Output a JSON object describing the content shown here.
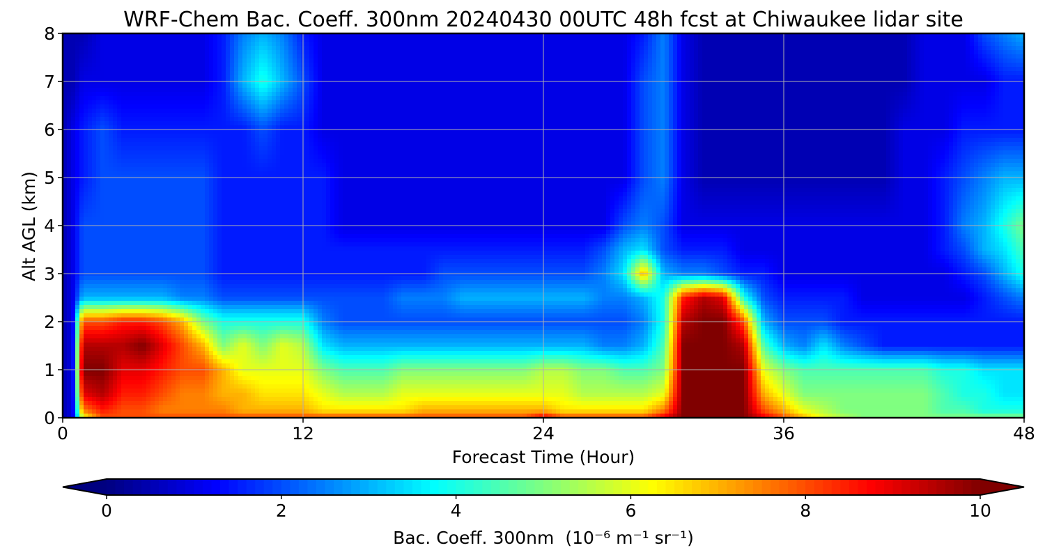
{
  "chart_data": {
    "type": "heatmap",
    "title": "WRF-Chem Bac. Coeff. 300nm  20240430 00UTC 48h fcst at Chiwaukee lidar site",
    "xlabel": "Forecast Time (Hour)",
    "ylabel": "Alt AGL (km)",
    "xlim": [
      0,
      48
    ],
    "ylim": [
      0,
      8
    ],
    "x_ticks": [
      "0",
      "12",
      "24",
      "36",
      "48"
    ],
    "y_ticks": [
      "0",
      "1",
      "2",
      "3",
      "4",
      "5",
      "6",
      "7",
      "8"
    ],
    "grid": true,
    "colormap": "jet",
    "colorbar": {
      "label": "Bac. Coeff. 300nm",
      "units": "(10⁻⁶ m⁻¹ sr⁻¹)",
      "range": [
        0,
        10
      ],
      "ticks": [
        "0",
        "2",
        "4",
        "6",
        "8",
        "10"
      ],
      "extend": "both",
      "orientation": "horizontal"
    },
    "x": [
      0,
      0.5,
      1,
      2,
      3,
      4,
      5,
      6,
      7,
      8,
      9,
      10,
      11,
      12,
      13,
      14,
      15,
      16,
      17,
      18,
      19,
      20,
      21,
      22,
      23,
      24,
      25,
      26,
      27,
      28,
      29,
      30,
      31,
      32,
      33,
      34,
      35,
      36,
      37,
      38,
      39,
      40,
      41,
      42,
      43,
      44,
      45,
      46,
      47,
      48
    ],
    "y": [
      0,
      0.15,
      0.5,
      1,
      1.5,
      2,
      2.5,
      3,
      3.5,
      4,
      5,
      6,
      7,
      8
    ],
    "z_by_altitude": [
      [
        0.5,
        1,
        6,
        8,
        8,
        8,
        8,
        8,
        8,
        8,
        8,
        8,
        8,
        8,
        8,
        8,
        8,
        8,
        8,
        8,
        8,
        8,
        8,
        8,
        8,
        9,
        8,
        8,
        8,
        8,
        8,
        9,
        10,
        10,
        10,
        10,
        9,
        8,
        7,
        6,
        5.5,
        5,
        5,
        5,
        5,
        5,
        5,
        5,
        5,
        5
      ],
      [
        0.5,
        1,
        7.5,
        8.5,
        8,
        8,
        7.5,
        7.5,
        7.5,
        7.5,
        7,
        7,
        7,
        7,
        6.5,
        6.5,
        6.5,
        6.5,
        6.5,
        7,
        7,
        7,
        7,
        7,
        7,
        7,
        6.5,
        6.5,
        6.5,
        6.5,
        6.5,
        7.5,
        10,
        10,
        10,
        10,
        8,
        7,
        6,
        5.5,
        5,
        5,
        5,
        5,
        5,
        4.5,
        4.5,
        4,
        4,
        4
      ],
      [
        0.5,
        1,
        9,
        9.5,
        8.5,
        8.5,
        8,
        7.5,
        7.5,
        7,
        7,
        6.5,
        6.5,
        6.5,
        6,
        5.5,
        5.5,
        5.5,
        6,
        6,
        6,
        6,
        6,
        6,
        6,
        6,
        6,
        5.5,
        5.5,
        5.5,
        5.5,
        6,
        10,
        10,
        10,
        10,
        7,
        6,
        5,
        5,
        5,
        5,
        5,
        5,
        5,
        4.5,
        4,
        4,
        3.5,
        3.5
      ],
      [
        0.5,
        1,
        10,
        10,
        9,
        9,
        8.5,
        8,
        8,
        7,
        6,
        6,
        6,
        6,
        5,
        4.5,
        4.5,
        4.5,
        5,
        5,
        5,
        5,
        5,
        5,
        5,
        5.5,
        5.5,
        5,
        5,
        4.5,
        4.5,
        5,
        10,
        10,
        10,
        10,
        6,
        5,
        4.5,
        4.5,
        4.5,
        4.5,
        4.5,
        4.5,
        4.5,
        4,
        4,
        3.5,
        3.5,
        3.5
      ],
      [
        0.5,
        1,
        9.5,
        9.5,
        9.5,
        10,
        9,
        8,
        7,
        5,
        6,
        5,
        6,
        5.5,
        3.5,
        3,
        3,
        3,
        3,
        3,
        3,
        3,
        3,
        3,
        3,
        3,
        3,
        3,
        2.5,
        2.5,
        3,
        4.5,
        10,
        10,
        10,
        9.5,
        4.5,
        3,
        2.5,
        3.5,
        2.5,
        2,
        1.5,
        1.5,
        1.5,
        1.5,
        1.5,
        1.5,
        1.5,
        1.5
      ],
      [
        0.5,
        1,
        8,
        8,
        8.5,
        8.5,
        8,
        7,
        5,
        4,
        4,
        4,
        4,
        4,
        2.5,
        2,
        2,
        2,
        2,
        2,
        2,
        2,
        2,
        2,
        2,
        2,
        2,
        2,
        2,
        2,
        2.5,
        4,
        9.5,
        10,
        10,
        8,
        3,
        2,
        2,
        2,
        1.5,
        1.5,
        1.5,
        1.5,
        1.5,
        1.5,
        1.5,
        1.5,
        1.5,
        1.5
      ],
      [
        0.5,
        1,
        3,
        3,
        3,
        3,
        3,
        2.5,
        2.5,
        2,
        2,
        2,
        2,
        2,
        2,
        2,
        2,
        2,
        2.5,
        2.5,
        2.5,
        3,
        3,
        3,
        3,
        3,
        3,
        3,
        2.5,
        2.5,
        3,
        4,
        8.5,
        9.5,
        9,
        4,
        2,
        1.5,
        1.5,
        1.5,
        1.5,
        1,
        1,
        1,
        1,
        1,
        1,
        1.5,
        2,
        2.5
      ],
      [
        0.5,
        1,
        2,
        2,
        2,
        2,
        2,
        2,
        2,
        1.5,
        1.5,
        1.5,
        1.5,
        1.5,
        1.5,
        1.5,
        1.5,
        1.5,
        1.5,
        1.5,
        2,
        2,
        2,
        2,
        2,
        2,
        2,
        2,
        2.5,
        3.5,
        7,
        3,
        2.5,
        2.5,
        2,
        1.5,
        1.5,
        1,
        1,
        1,
        1,
        1,
        1,
        1,
        1,
        1,
        1.5,
        2,
        3,
        4
      ],
      [
        0.5,
        1,
        2,
        2,
        2,
        2,
        2,
        2,
        2,
        1.5,
        1.5,
        1.5,
        1.5,
        1.5,
        1.5,
        1.5,
        1.5,
        1.5,
        1.5,
        1.5,
        1.5,
        1.5,
        1.5,
        1.5,
        1.5,
        1.5,
        1.5,
        1.5,
        2,
        3,
        3.5,
        2,
        1.5,
        1.5,
        1.5,
        1,
        1,
        1,
        1,
        1,
        1,
        1,
        1,
        1,
        1,
        1.5,
        2,
        3,
        3.5,
        4.5
      ],
      [
        0.5,
        1,
        2,
        2,
        2,
        2,
        2,
        2,
        2,
        1.5,
        1.5,
        1.5,
        1.5,
        1.5,
        1.5,
        1,
        1,
        1,
        1,
        1,
        1,
        1,
        1,
        1,
        1,
        1,
        1,
        1,
        1,
        2,
        2.5,
        2,
        1,
        1,
        1,
        1,
        1,
        1,
        1,
        1,
        1,
        1,
        1,
        1,
        1,
        1.5,
        2.5,
        3,
        4,
        5
      ],
      [
        0.5,
        1,
        1.5,
        2,
        2,
        2,
        2,
        2,
        2,
        1.5,
        1.5,
        1.5,
        1.5,
        1.5,
        1.5,
        1,
        1,
        1,
        1,
        1,
        1,
        1,
        1,
        1,
        1,
        1,
        1,
        1,
        1,
        1,
        2,
        2.5,
        1,
        0.5,
        0.5,
        0.5,
        0.5,
        0.5,
        0.5,
        0.5,
        0.5,
        0.5,
        0.5,
        1,
        1,
        1.5,
        2,
        2.5,
        3,
        3
      ],
      [
        0.5,
        1,
        1.5,
        2,
        1.5,
        1.5,
        1.5,
        1.5,
        1.5,
        1.5,
        1.5,
        2,
        1.5,
        1.5,
        1,
        1,
        1,
        1,
        1,
        1,
        1,
        1,
        1,
        1,
        1,
        1,
        1,
        1,
        1,
        1,
        2,
        2.5,
        1,
        0.5,
        0.5,
        0.5,
        0.5,
        0.5,
        0.5,
        0.5,
        0.5,
        0.5,
        0.5,
        1,
        1,
        1,
        1.5,
        1.5,
        1.5,
        1.5
      ],
      [
        0.5,
        0.5,
        1,
        1,
        1,
        1,
        1,
        1,
        1,
        1.5,
        3,
        4,
        3,
        2,
        1,
        1,
        1,
        1,
        1,
        1,
        1,
        1,
        1,
        1,
        1,
        1,
        1,
        1,
        1,
        1,
        2,
        2.5,
        1,
        0.5,
        0.5,
        0.5,
        0.5,
        0.5,
        0.5,
        0.5,
        0.5,
        0.5,
        0.5,
        0.5,
        1,
        1,
        1,
        1,
        1.5,
        1.5
      ],
      [
        0.5,
        0.5,
        0.5,
        1,
        1,
        1,
        1,
        1,
        1,
        1.5,
        2.5,
        3,
        2.5,
        1.5,
        1,
        1,
        1,
        1,
        1,
        1,
        1,
        1,
        1,
        1,
        1,
        1,
        1,
        1,
        1,
        1,
        1.5,
        2.5,
        1,
        0.5,
        0.5,
        0.5,
        0.5,
        0.5,
        0.5,
        0.5,
        0.5,
        0.5,
        0.5,
        0.5,
        1,
        1,
        1,
        2,
        2.5,
        3
      ]
    ]
  }
}
